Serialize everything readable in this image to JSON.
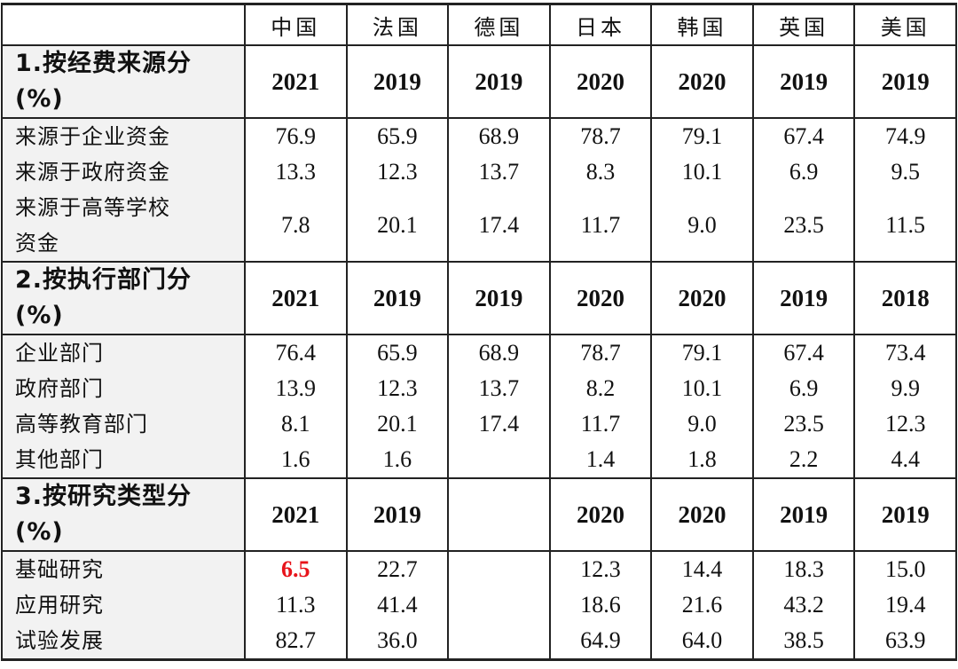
{
  "countries": [
    "中国",
    "法国",
    "德国",
    "日本",
    "韩国",
    "英国",
    "美国"
  ],
  "sections": [
    {
      "title": "1.按经费来源分",
      "unit": "(%)",
      "years": [
        "2021",
        "2019",
        "2019",
        "2020",
        "2020",
        "2019",
        "2019"
      ],
      "rows": [
        {
          "label": "来源于企业资金",
          "values": [
            "76.9",
            "65.9",
            "68.9",
            "78.7",
            "79.1",
            "67.4",
            "74.9"
          ]
        },
        {
          "label": "来源于政府资金",
          "values": [
            "13.3",
            "12.3",
            "13.7",
            "8.3",
            "10.1",
            "6.9",
            "9.5"
          ]
        },
        {
          "label": "来源于高等学校资金",
          "values": [
            "7.8",
            "20.1",
            "17.4",
            "11.7",
            "9.0",
            "23.5",
            "11.5"
          ]
        }
      ]
    },
    {
      "title": "2.按执行部门分",
      "unit": "(%)",
      "years": [
        "2021",
        "2019",
        "2019",
        "2020",
        "2020",
        "2019",
        "2018"
      ],
      "rows": [
        {
          "label": "企业部门",
          "values": [
            "76.4",
            "65.9",
            "68.9",
            "78.7",
            "79.1",
            "67.4",
            "73.4"
          ]
        },
        {
          "label": "政府部门",
          "values": [
            "13.9",
            "12.3",
            "13.7",
            "8.2",
            "10.1",
            "6.9",
            "9.9"
          ]
        },
        {
          "label": "高等教育部门",
          "values": [
            "8.1",
            "20.1",
            "17.4",
            "11.7",
            "9.0",
            "23.5",
            "12.3"
          ]
        },
        {
          "label": "其他部门",
          "values": [
            "1.6",
            "1.6",
            "",
            "1.4",
            "1.8",
            "2.2",
            "4.4"
          ]
        }
      ]
    },
    {
      "title": "3.按研究类型分",
      "unit": "(%)",
      "years": [
        "2021",
        "2019",
        "",
        "2020",
        "2020",
        "2019",
        "2019"
      ],
      "rows": [
        {
          "label": "基础研究",
          "values": [
            "6.5",
            "22.7",
            "",
            "12.3",
            "14.4",
            "18.3",
            "15.0"
          ]
        },
        {
          "label": "应用研究",
          "values": [
            "11.3",
            "41.4",
            "",
            "18.6",
            "21.6",
            "43.2",
            "19.4"
          ]
        },
        {
          "label": "试验发展",
          "values": [
            "82.7",
            "36.0",
            "",
            "64.9",
            "64.0",
            "38.5",
            "63.9"
          ]
        }
      ]
    }
  ],
  "highlight_color": "#e8141b"
}
